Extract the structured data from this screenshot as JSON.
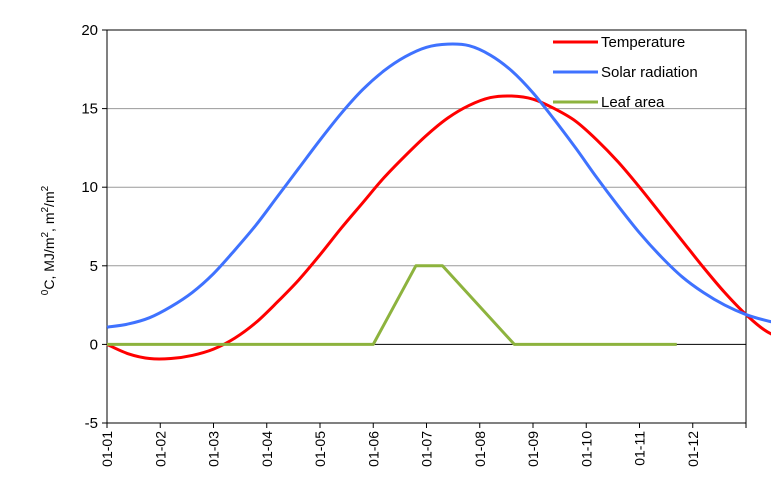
{
  "chart_data": {
    "type": "line",
    "title": "",
    "xlabel": "",
    "ylabel": {
      "parts": [
        {
          "t": "0",
          "sup": true
        },
        {
          "t": "C, MJ/m",
          "sup": false
        },
        {
          "t": "2",
          "sup": true
        },
        {
          "t": ", m",
          "sup": false
        },
        {
          "t": "2",
          "sup": true
        },
        {
          "t": "/m",
          "sup": false
        },
        {
          "t": "2",
          "sup": true
        }
      ]
    },
    "x_tick_labels": [
      "01-01",
      "01-02",
      "01-03",
      "01-04",
      "01-05",
      "01-06",
      "01-07",
      "01-08",
      "01-09",
      "01-10",
      "01-11",
      "01-12"
    ],
    "x_range_months": [
      0,
      12
    ],
    "ylim": [
      -5,
      20
    ],
    "y_ticks": [
      -5,
      0,
      5,
      10,
      15,
      20
    ],
    "grid": "horizontal",
    "legend_position": "top-right",
    "series": [
      {
        "name": "Temperature",
        "color": "#ff0000",
        "points": [
          [
            0,
            0
          ],
          [
            0.4,
            -0.6
          ],
          [
            0.8,
            -0.9
          ],
          [
            1.2,
            -0.9
          ],
          [
            1.6,
            -0.7
          ],
          [
            2.0,
            -0.3
          ],
          [
            2.4,
            0.4
          ],
          [
            2.8,
            1.4
          ],
          [
            3.2,
            2.7
          ],
          [
            3.6,
            4.1
          ],
          [
            4.0,
            5.7
          ],
          [
            4.4,
            7.4
          ],
          [
            4.8,
            9.0
          ],
          [
            5.2,
            10.6
          ],
          [
            5.6,
            12.0
          ],
          [
            6.0,
            13.3
          ],
          [
            6.4,
            14.4
          ],
          [
            6.8,
            15.2
          ],
          [
            7.2,
            15.7
          ],
          [
            7.6,
            15.8
          ],
          [
            8.0,
            15.6
          ],
          [
            8.4,
            15.0
          ],
          [
            8.8,
            14.2
          ],
          [
            9.2,
            13.0
          ],
          [
            9.6,
            11.6
          ],
          [
            10.0,
            10.0
          ],
          [
            10.4,
            8.3
          ],
          [
            10.8,
            6.6
          ],
          [
            11.2,
            4.9
          ],
          [
            11.6,
            3.3
          ],
          [
            12.0,
            1.9
          ],
          [
            12.4,
            0.8
          ],
          [
            12.95,
            0
          ]
        ]
      },
      {
        "name": "Solar radiation",
        "color": "#3f72ff",
        "points": [
          [
            0,
            1.1
          ],
          [
            0.4,
            1.3
          ],
          [
            0.8,
            1.7
          ],
          [
            1.2,
            2.4
          ],
          [
            1.6,
            3.3
          ],
          [
            2.0,
            4.5
          ],
          [
            2.4,
            6.0
          ],
          [
            2.8,
            7.6
          ],
          [
            3.2,
            9.4
          ],
          [
            3.6,
            11.2
          ],
          [
            4.0,
            13.0
          ],
          [
            4.4,
            14.7
          ],
          [
            4.8,
            16.2
          ],
          [
            5.2,
            17.4
          ],
          [
            5.6,
            18.3
          ],
          [
            6.0,
            18.9
          ],
          [
            6.4,
            19.1
          ],
          [
            6.8,
            19.0
          ],
          [
            7.2,
            18.4
          ],
          [
            7.6,
            17.4
          ],
          [
            8.0,
            16.0
          ],
          [
            8.4,
            14.3
          ],
          [
            8.8,
            12.5
          ],
          [
            9.2,
            10.6
          ],
          [
            9.6,
            8.8
          ],
          [
            10.0,
            7.1
          ],
          [
            10.4,
            5.6
          ],
          [
            10.8,
            4.3
          ],
          [
            11.2,
            3.3
          ],
          [
            11.6,
            2.5
          ],
          [
            12.0,
            1.9
          ],
          [
            12.4,
            1.5
          ],
          [
            12.95,
            1.1
          ]
        ]
      },
      {
        "name": "Leaf area",
        "color": "#8db33e",
        "points": [
          [
            0,
            0
          ],
          [
            5.0,
            0
          ],
          [
            5.8,
            5.0
          ],
          [
            6.3,
            5.0
          ],
          [
            7.65,
            0
          ],
          [
            10.7,
            0
          ]
        ]
      }
    ]
  }
}
